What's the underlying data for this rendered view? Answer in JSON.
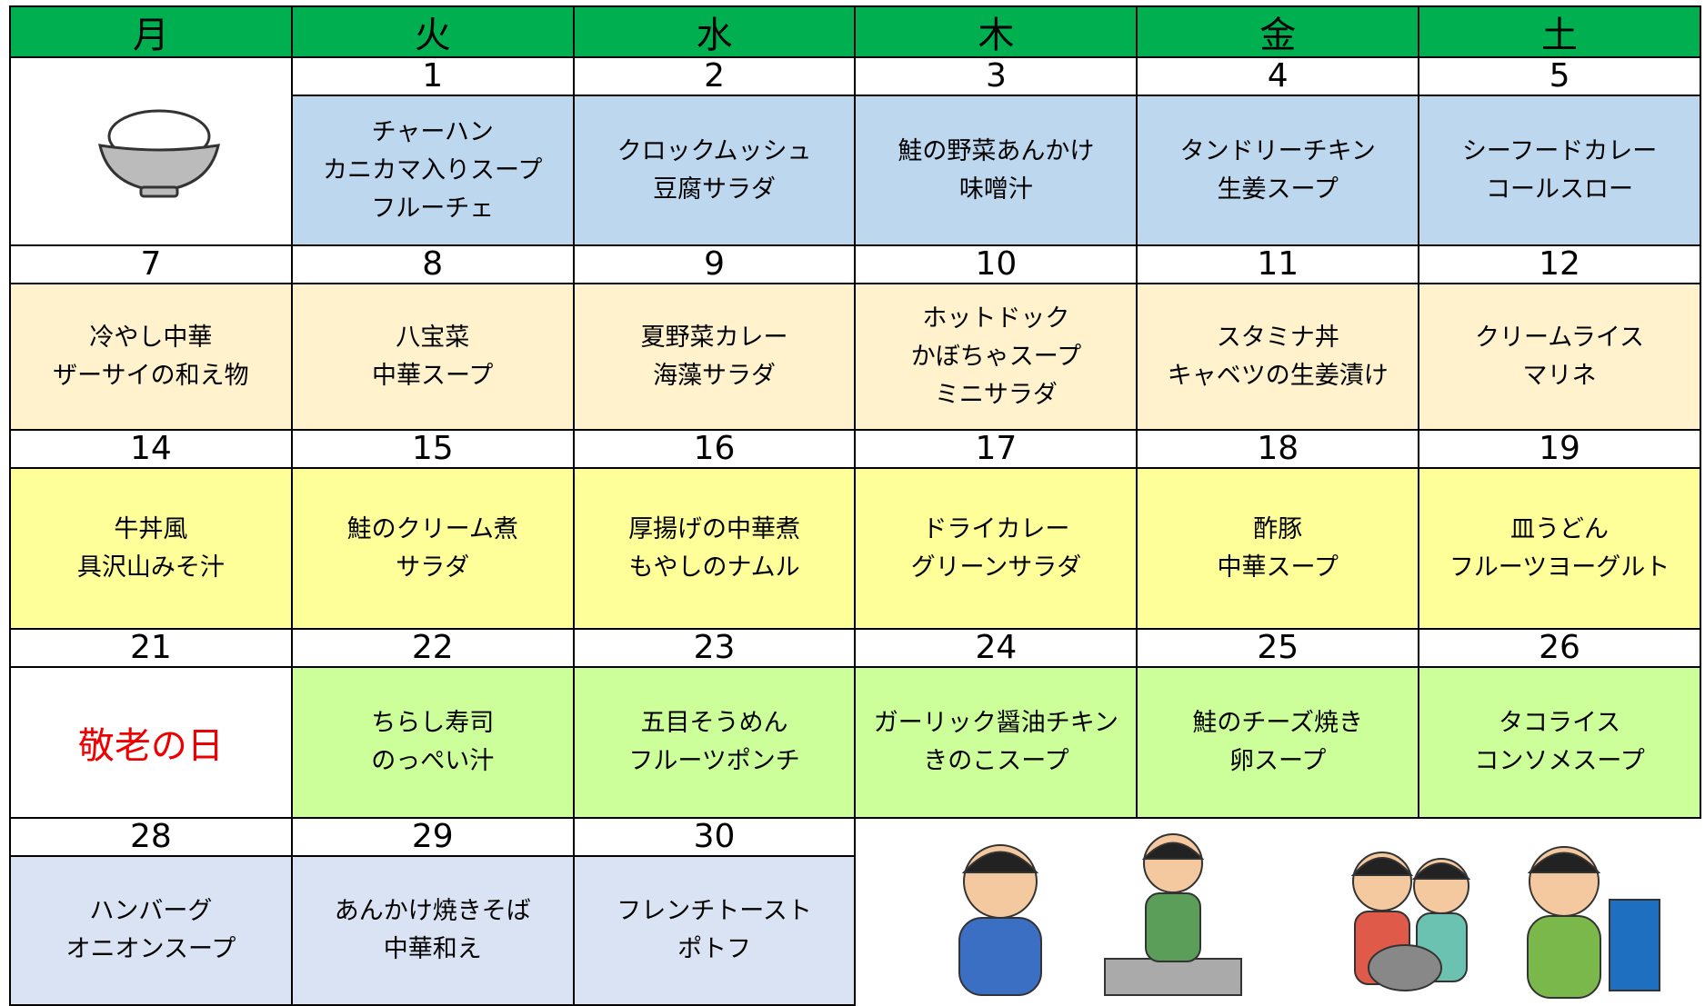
{
  "header": {
    "days": [
      "月",
      "火",
      "水",
      "木",
      "金",
      "土"
    ]
  },
  "weeks": [
    {
      "color": "#bdd7ee",
      "cells": [
        null,
        {
          "date": 1,
          "menu": [
            "チャーハン",
            "カニカマ入りスープ",
            "フルーチェ"
          ]
        },
        {
          "date": 2,
          "menu": [
            "クロックムッシュ",
            "豆腐サラダ"
          ]
        },
        {
          "date": 3,
          "menu": [
            "鮭の野菜あんかけ",
            "味噌汁"
          ]
        },
        {
          "date": 4,
          "menu": [
            "タンドリーチキン",
            "生姜スープ"
          ]
        },
        {
          "date": 5,
          "menu": [
            "シーフードカレー",
            "コールスロー"
          ]
        }
      ]
    },
    {
      "color": "#fff2cc",
      "cells": [
        {
          "date": 7,
          "menu": [
            "冷やし中華",
            "ザーサイの和え物"
          ]
        },
        {
          "date": 8,
          "menu": [
            "八宝菜",
            "中華スープ"
          ]
        },
        {
          "date": 9,
          "menu": [
            "夏野菜カレー",
            "海藻サラダ"
          ]
        },
        {
          "date": 10,
          "menu": [
            "ホットドック",
            "かぼちゃスープ",
            "ミニサラダ"
          ]
        },
        {
          "date": 11,
          "menu": [
            "スタミナ丼",
            "キャベツの生姜漬け"
          ]
        },
        {
          "date": 12,
          "menu": [
            "クリームライス",
            "マリネ"
          ]
        }
      ]
    },
    {
      "color": "#ffff99",
      "cells": [
        {
          "date": 14,
          "menu": [
            "牛丼風",
            "具沢山みそ汁"
          ]
        },
        {
          "date": 15,
          "menu": [
            "鮭のクリーム煮",
            "サラダ"
          ]
        },
        {
          "date": 16,
          "menu": [
            "厚揚げの中華煮",
            "もやしのナムル"
          ]
        },
        {
          "date": 17,
          "menu": [
            "ドライカレー",
            "グリーンサラダ"
          ]
        },
        {
          "date": 18,
          "menu": [
            "酢豚",
            "中華スープ"
          ]
        },
        {
          "date": 19,
          "menu": [
            "皿うどん",
            "フルーツヨーグルト"
          ]
        }
      ]
    },
    {
      "color": "#ccff99",
      "cells": [
        {
          "date": 21,
          "holiday": "敬老の日"
        },
        {
          "date": 22,
          "menu": [
            "ちらし寿司",
            "のっぺい汁"
          ]
        },
        {
          "date": 23,
          "menu": [
            "五目そうめん",
            "フルーツポンチ"
          ]
        },
        {
          "date": 24,
          "menu": [
            "ガーリック醤油チキン",
            "きのこスープ"
          ]
        },
        {
          "date": 25,
          "menu": [
            "鮭のチーズ焼き",
            "卵スープ"
          ]
        },
        {
          "date": 26,
          "menu": [
            "タコライス",
            "コンソメスープ"
          ]
        }
      ]
    },
    {
      "color": "#dae3f3",
      "cells": [
        {
          "date": 28,
          "menu": [
            "ハンバーグ",
            "オニオンスープ"
          ]
        },
        {
          "date": 29,
          "menu": [
            "あんかけ焼きそば",
            "中華和え"
          ]
        },
        {
          "date": 30,
          "menu": [
            "フレンチトースト",
            "ポトフ"
          ]
        }
      ]
    }
  ]
}
